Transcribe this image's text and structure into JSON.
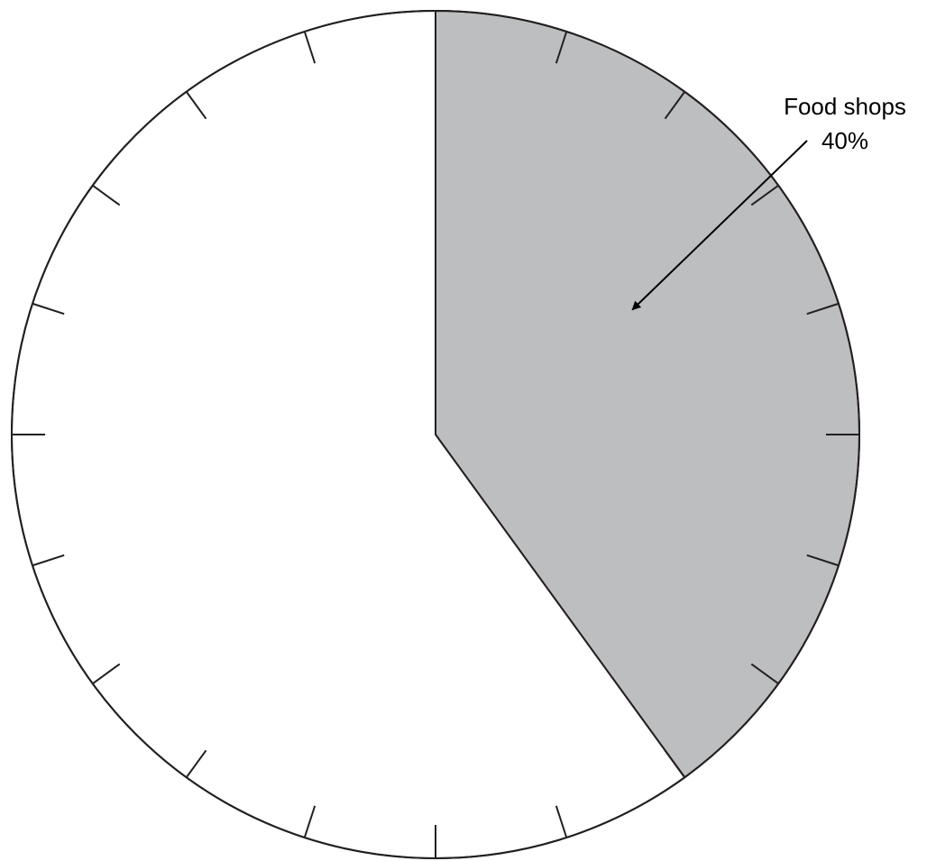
{
  "chart_data": {
    "type": "pie",
    "categories": [
      "Food shops",
      null
    ],
    "values": [
      40,
      60
    ],
    "value_labels": [
      "40%",
      null
    ],
    "colors": [
      "#bcbec0",
      "#ffffff"
    ],
    "ticks": [
      0,
      5,
      10,
      15,
      20,
      25,
      30,
      35,
      40,
      45,
      50,
      55,
      60,
      65,
      70,
      75,
      80,
      85,
      90,
      95
    ]
  }
}
